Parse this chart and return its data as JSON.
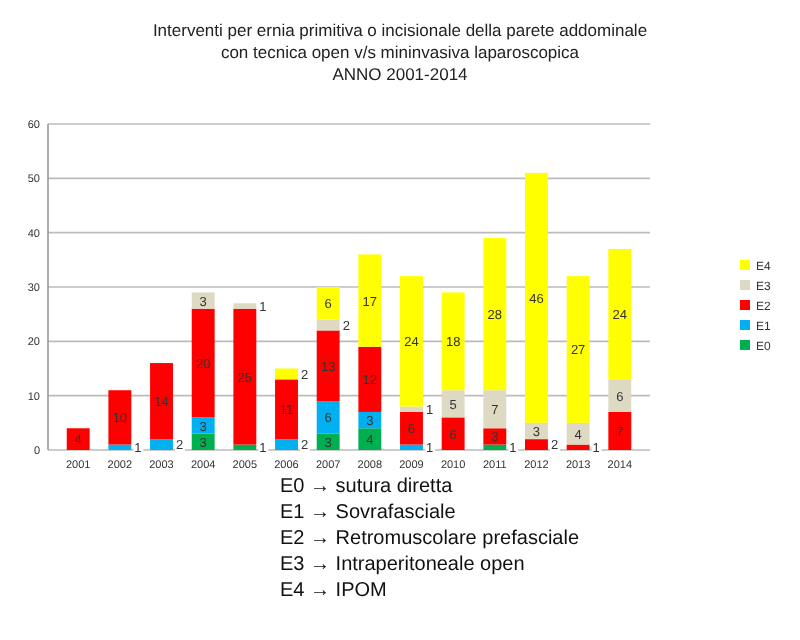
{
  "chart_data": {
    "type": "bar",
    "stacked": true,
    "title": "Interventi per ernia primitiva o incisionale della parete addominale\ncon tecnica open v/s mininvasiva laparoscopica\nANNO 2001-2014",
    "categories": [
      "2001",
      "2002",
      "2003",
      "2004",
      "2005",
      "2006",
      "2007",
      "2008",
      "2009",
      "2010",
      "2011",
      "2012",
      "2013",
      "2014"
    ],
    "series": [
      {
        "name": "E0",
        "color": "#00b050",
        "values": [
          null,
          null,
          null,
          3,
          1,
          null,
          3,
          4,
          null,
          null,
          1,
          null,
          null,
          null
        ]
      },
      {
        "name": "E1",
        "color": "#00b0f0",
        "values": [
          null,
          1,
          2,
          3,
          null,
          2,
          6,
          3,
          1,
          null,
          null,
          null,
          null,
          null
        ]
      },
      {
        "name": "E2",
        "color": "#ff0000",
        "values": [
          4,
          10,
          14,
          20,
          25,
          11,
          13,
          12,
          6,
          6,
          3,
          2,
          1,
          7
        ]
      },
      {
        "name": "E3",
        "color": "#ddd9c3",
        "values": [
          null,
          null,
          null,
          3,
          1,
          null,
          2,
          null,
          1,
          5,
          7,
          3,
          4,
          6
        ]
      },
      {
        "name": "E4",
        "color": "#ffff00",
        "values": [
          null,
          null,
          null,
          null,
          null,
          2,
          6,
          17,
          24,
          18,
          28,
          46,
          27,
          24
        ]
      }
    ],
    "ylim": [
      0,
      60
    ],
    "yticks": [
      0,
      10,
      20,
      30,
      40,
      50,
      60
    ],
    "grid": "y",
    "legend": "right",
    "data_labels": true,
    "annotations": [
      "E0 → sutura diretta",
      "E1 → Sovrafasciale",
      "E2 → Retromuscolare prefasciale",
      "E3 → Intraperitoneale open",
      "E4 → IPOM"
    ]
  }
}
